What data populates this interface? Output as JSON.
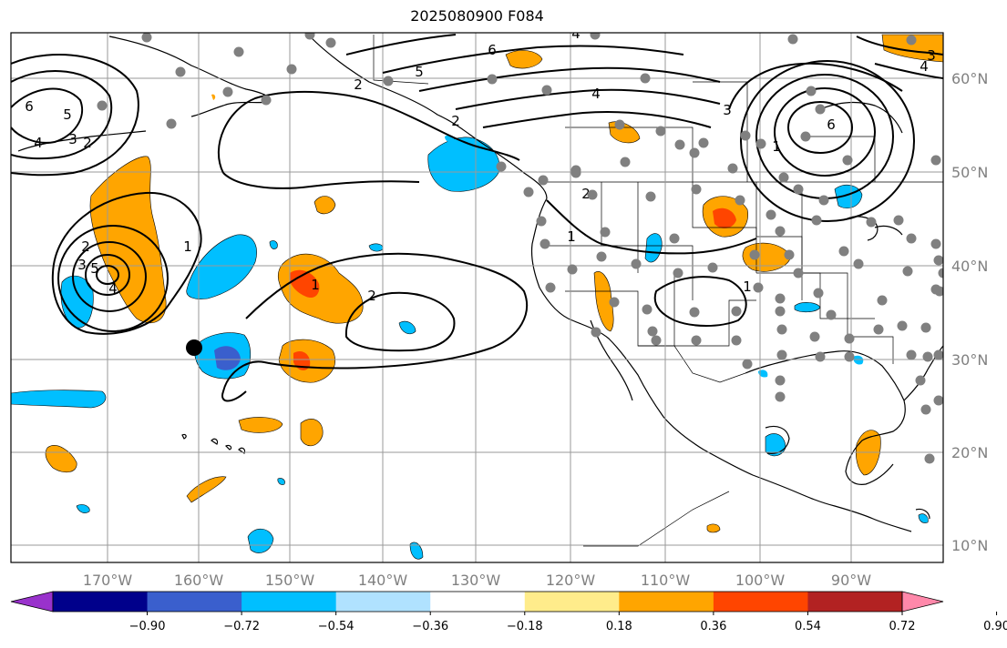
{
  "title": "2025080900 F084",
  "map": {
    "lon_ticks": [
      "170°W",
      "160°W",
      "150°W",
      "140°W",
      "130°W",
      "120°W",
      "110°W",
      "100°W",
      "90°W"
    ],
    "lat_ticks": [
      "60°N",
      "50°N",
      "40°N",
      "30°N",
      "20°N",
      "10°N"
    ],
    "grid": true
  },
  "colorbar": {
    "ticks": [
      "−0.90",
      "−0.72",
      "−0.54",
      "−0.36",
      "−0.18",
      "0.18",
      "0.36",
      "0.54",
      "0.72",
      "0.90"
    ],
    "colors": [
      "#9932cc",
      "#00008b",
      "#3a5fcd",
      "#00bfff",
      "#b0e2ff",
      "#ffffff",
      "#ffec8b",
      "#ffa500",
      "#ff4500",
      "#b22222",
      "#ff88aa"
    ],
    "extend": "both"
  },
  "contour_labels": [
    "6",
    "4",
    "5",
    "3",
    "2",
    "6",
    "4",
    "2",
    "2",
    "1",
    "5",
    "4",
    "3",
    "2",
    "1",
    "1",
    "2",
    "6",
    "4",
    "5",
    "3",
    "1",
    "3",
    "4",
    "2",
    "1"
  ],
  "colors": {
    "gridline": "#9a9a9a",
    "coast": "#000000",
    "dots": "#808080",
    "positive_light": "#ffa500",
    "positive_strong": "#ff4500",
    "negative_light": "#00bfff",
    "negative_strong": "#3a5fcd"
  }
}
